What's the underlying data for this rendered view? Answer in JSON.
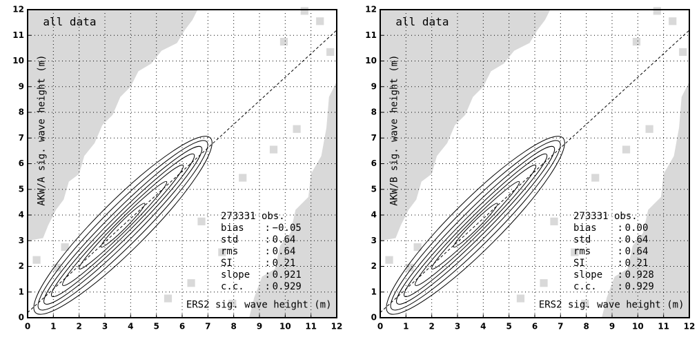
{
  "chart_data": [
    {
      "type": "scatter",
      "annotation": "all data",
      "x_label": "ERS2 sig. wave height (m)",
      "y_label": "AKW/A sig. wave height (m)",
      "xlim": [
        0,
        12
      ],
      "ylim": [
        0,
        12
      ],
      "xticks": [
        0,
        1,
        2,
        3,
        4,
        5,
        6,
        7,
        8,
        9,
        10,
        11,
        12
      ],
      "yticks": [
        0,
        1,
        2,
        3,
        4,
        5,
        6,
        7,
        8,
        9,
        10,
        11,
        12
      ],
      "grid": true,
      "obs": "273331 obs.",
      "separator": ":",
      "stats": [
        {
          "label": "bias",
          "value": "−0.05"
        },
        {
          "label": "std",
          "value": "0.64"
        },
        {
          "label": "rms",
          "value": "0.64"
        },
        {
          "label": "SI",
          "value": "0.21"
        },
        {
          "label": "slope",
          "value": "0.921"
        },
        {
          "label": "c.c.",
          "value": "0.929"
        }
      ]
    },
    {
      "type": "scatter",
      "annotation": "all data",
      "x_label": "ERS2 sig. wave height (m)",
      "y_label": "AKW/B sig. wave height (m)",
      "xlim": [
        0,
        12
      ],
      "ylim": [
        0,
        12
      ],
      "xticks": [
        0,
        1,
        2,
        3,
        4,
        5,
        6,
        7,
        8,
        9,
        10,
        11,
        12
      ],
      "yticks": [
        0,
        1,
        2,
        3,
        4,
        5,
        6,
        7,
        8,
        9,
        10,
        11,
        12
      ],
      "grid": true,
      "obs": "273331 obs.",
      "separator": ":",
      "stats": [
        {
          "label": "bias",
          "value": "0.00"
        },
        {
          "label": "std",
          "value": "0.64"
        },
        {
          "label": "rms",
          "value": "0.64"
        },
        {
          "label": "SI",
          "value": "0.21"
        },
        {
          "label": "slope",
          "value": "0.928"
        },
        {
          "label": "c.c.",
          "value": "0.929"
        }
      ]
    }
  ]
}
